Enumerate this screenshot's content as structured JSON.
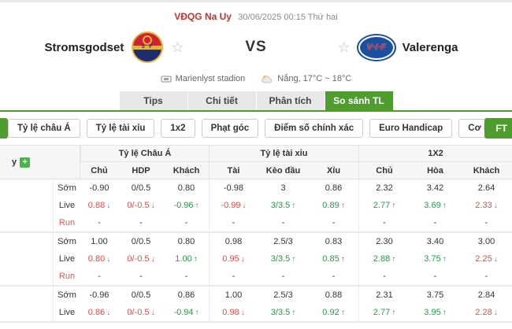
{
  "header": {
    "league": "VĐQG Na Uy",
    "datetime": "30/06/2025 00:15 Thứ hai"
  },
  "match": {
    "home_name": "Stromsgodset",
    "away_name": "Valerenga",
    "away_logo_text": "V·I·F",
    "home_logo_band": "S F",
    "vs": "VS",
    "venue": "Marienlyst stadion",
    "weather": "Nắng, 17°C ~ 18°C"
  },
  "tabs": [
    {
      "label": "Tips",
      "active": false
    },
    {
      "label": "Chi tiết",
      "active": false
    },
    {
      "label": "Phân tích",
      "active": false
    },
    {
      "label": "So sánh TL",
      "active": true
    }
  ],
  "filters": {
    "items": [
      "Tỷ lệ châu Á",
      "Tỷ lệ tài xỉu",
      "1x2",
      "Phạt góc",
      "Điểm số chính xác",
      "Euro Handicap",
      "Cơ hội kép"
    ],
    "ft": "FT"
  },
  "table": {
    "company_fragment": "y",
    "group_headers": [
      "Tỷ lệ Châu Á",
      "Tỷ lệ tài xỉu",
      "1X2"
    ],
    "sub_headers": [
      "Chủ",
      "HDP",
      "Khách",
      "Tài",
      "Kèo đầu",
      "Xỉu",
      "Chủ",
      "Hòa",
      "Khách"
    ],
    "bookmakers": [
      {
        "rows": [
          {
            "label": "Sớm",
            "cells": [
              {
                "v": "-0.90"
              },
              {
                "v": "0/0.5"
              },
              {
                "v": "0.80"
              },
              {
                "v": "-0.98"
              },
              {
                "v": "3"
              },
              {
                "v": "0.86"
              },
              {
                "v": "2.32"
              },
              {
                "v": "3.42"
              },
              {
                "v": "2.64"
              }
            ]
          },
          {
            "label": "Live",
            "cells": [
              {
                "v": "0.88",
                "t": "down"
              },
              {
                "v": "0/-0.5",
                "t": "down"
              },
              {
                "v": "-0.96",
                "t": "up"
              },
              {
                "v": "-0.99",
                "t": "down"
              },
              {
                "v": "3/3.5",
                "t": "up"
              },
              {
                "v": "0.89",
                "t": "up"
              },
              {
                "v": "2.77",
                "t": "up"
              },
              {
                "v": "3.69",
                "t": "up"
              },
              {
                "v": "2.33",
                "t": "down"
              }
            ]
          },
          {
            "label": "Run",
            "cells": [
              {
                "v": "-"
              },
              {
                "v": "-"
              },
              {
                "v": "-"
              },
              {
                "v": "-"
              },
              {
                "v": "-"
              },
              {
                "v": "-"
              },
              {
                "v": "-"
              },
              {
                "v": "-"
              },
              {
                "v": "-"
              }
            ]
          }
        ]
      },
      {
        "rows": [
          {
            "label": "Sớm",
            "cells": [
              {
                "v": "1.00"
              },
              {
                "v": "0/0.5"
              },
              {
                "v": "0.80"
              },
              {
                "v": "0.98"
              },
              {
                "v": "2.5/3"
              },
              {
                "v": "0.83"
              },
              {
                "v": "2.30"
              },
              {
                "v": "3.40"
              },
              {
                "v": "3.00"
              }
            ]
          },
          {
            "label": "Live",
            "cells": [
              {
                "v": "0.80",
                "t": "down"
              },
              {
                "v": "0/-0.5",
                "t": "down"
              },
              {
                "v": "1.00",
                "t": "up"
              },
              {
                "v": "0.95",
                "t": "down"
              },
              {
                "v": "3/3.5",
                "t": "up"
              },
              {
                "v": "0.85",
                "t": "up"
              },
              {
                "v": "2.88",
                "t": "up"
              },
              {
                "v": "3.75",
                "t": "up"
              },
              {
                "v": "2.25",
                "t": "down"
              }
            ]
          },
          {
            "label": "Run",
            "cells": [
              {
                "v": "-"
              },
              {
                "v": "-"
              },
              {
                "v": "-"
              },
              {
                "v": "-"
              },
              {
                "v": "-"
              },
              {
                "v": "-"
              },
              {
                "v": "-"
              },
              {
                "v": "-"
              },
              {
                "v": "-"
              }
            ]
          }
        ]
      },
      {
        "rows": [
          {
            "label": "Sớm",
            "cells": [
              {
                "v": "-0.96"
              },
              {
                "v": "0/0.5"
              },
              {
                "v": "0.86"
              },
              {
                "v": "1.00"
              },
              {
                "v": "2.5/3"
              },
              {
                "v": "0.88"
              },
              {
                "v": "2.31"
              },
              {
                "v": "3.75"
              },
              {
                "v": "2.84"
              }
            ]
          },
          {
            "label": "Live",
            "cells": [
              {
                "v": "0.86",
                "t": "down"
              },
              {
                "v": "0/-0.5",
                "t": "down"
              },
              {
                "v": "-0.94",
                "t": "up"
              },
              {
                "v": "0.98",
                "t": "down"
              },
              {
                "v": "3/3.5",
                "t": "up"
              },
              {
                "v": "0.92",
                "t": "up"
              },
              {
                "v": "2.77",
                "t": "up"
              },
              {
                "v": "3.95",
                "t": "up"
              },
              {
                "v": "2.28",
                "t": "down"
              }
            ]
          }
        ]
      }
    ]
  },
  "colors": {
    "green": "#4f9d2f",
    "league_red": "#c9302c",
    "live_red": "#f04843",
    "live_green": "#22a049",
    "run_red": "#e25757"
  }
}
